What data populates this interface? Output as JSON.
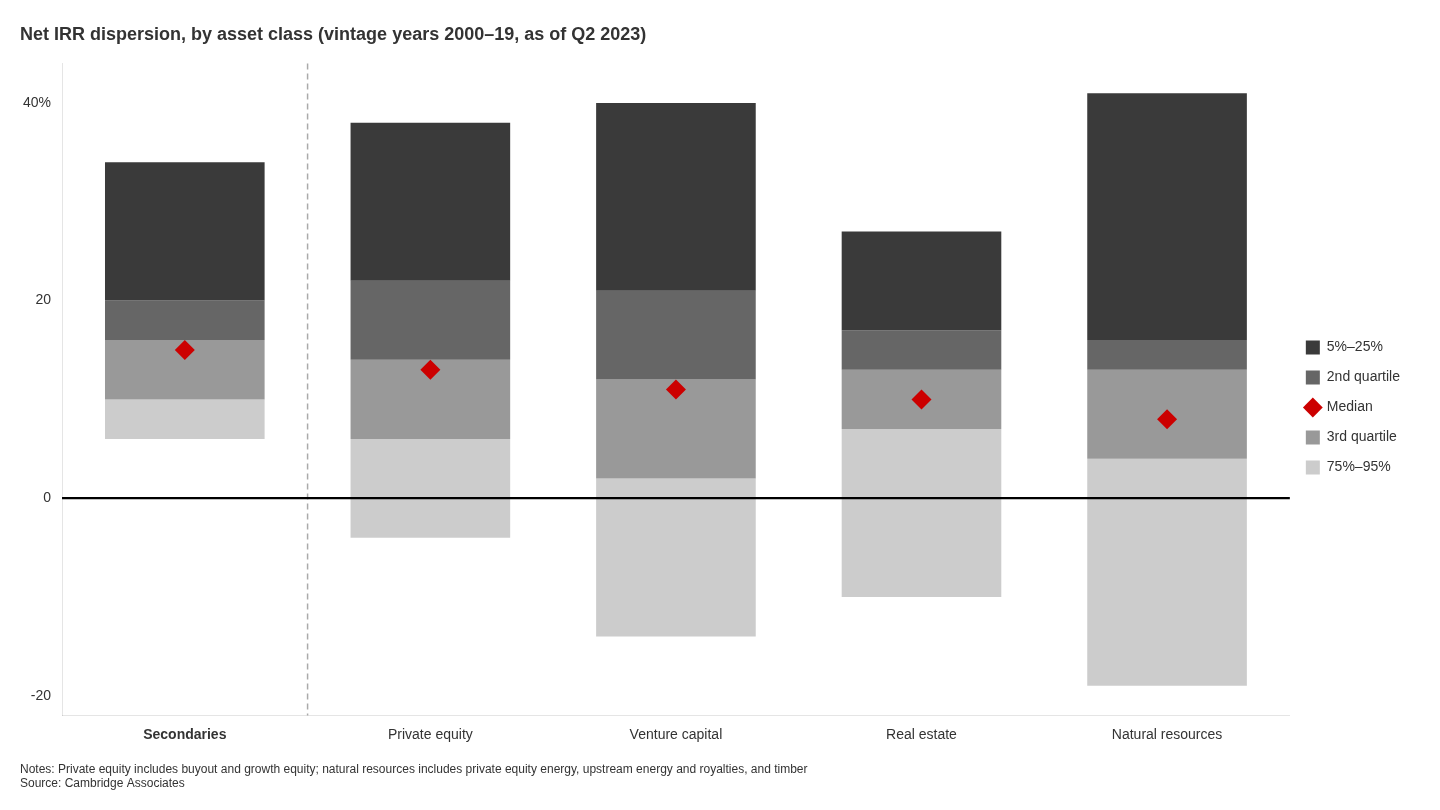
{
  "chart_data": {
    "type": "bar",
    "title": "Net IRR dispersion, by asset class (vintage years 2000–19, as of Q2 2023)",
    "notes": "Notes: Private equity includes buyout and growth equity; natural resources includes private equity energy, upstream energy and royalties, and timber",
    "source": "Source: Cambridge Associates",
    "categories": [
      "Secondaries",
      "Private equity",
      "Venture capital",
      "Real estate",
      "Natural resources"
    ],
    "series": [
      {
        "name": "5%–25%",
        "color": "#3a3a3a",
        "values": [
          [
            20,
            34
          ],
          [
            22,
            38
          ],
          [
            21,
            40
          ],
          [
            17,
            27
          ],
          [
            16,
            41
          ]
        ]
      },
      {
        "name": "2nd quartile",
        "color": "#666666",
        "values": [
          [
            16,
            20
          ],
          [
            14,
            22
          ],
          [
            12,
            21
          ],
          [
            13,
            17
          ],
          [
            13,
            16
          ]
        ]
      },
      {
        "name": "Median",
        "type": "scatter",
        "marker": "diamond",
        "color": "#cc0000",
        "values": [
          15,
          13,
          11,
          10,
          8
        ]
      },
      {
        "name": "3rd quartile",
        "color": "#999999",
        "values": [
          [
            10,
            16
          ],
          [
            6,
            14
          ],
          [
            2,
            12
          ],
          [
            7,
            13
          ],
          [
            4,
            13
          ]
        ]
      },
      {
        "name": "75%–95%",
        "color": "#cccccc",
        "values": [
          [
            6,
            10
          ],
          [
            -4,
            6
          ],
          [
            -14,
            2
          ],
          [
            -10,
            7
          ],
          [
            -19,
            4
          ]
        ]
      }
    ],
    "stacked": true,
    "ylim": [
      -22,
      44
    ],
    "yticks": [
      -20,
      0,
      20,
      {
        "value": 40,
        "label": "40%"
      }
    ],
    "grid": false,
    "legend": "right"
  }
}
